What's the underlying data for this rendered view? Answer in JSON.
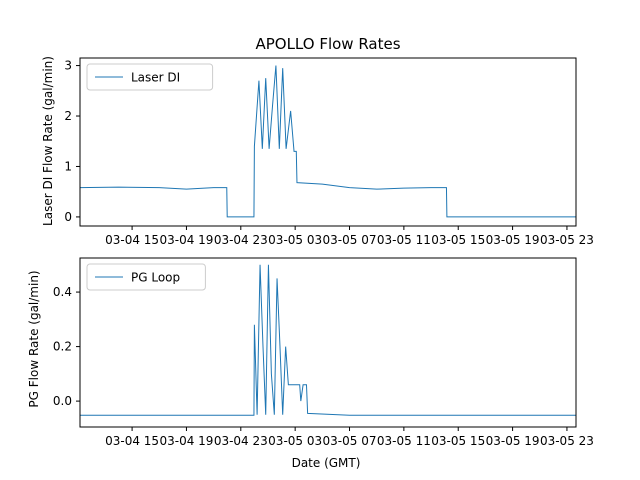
{
  "chart_data": [
    {
      "type": "line",
      "title": "APOLLO Flow Rates",
      "xlabel": "",
      "ylabel": "Laser DI Flow Rate (gal/min)",
      "xlim": [
        "2024-03-04 11:10",
        "2024-03-05 23:40"
      ],
      "ylim": [
        -0.18,
        3.15
      ],
      "xticks": [
        "03-04 15",
        "03-04 19",
        "03-04 23",
        "03-05 03",
        "03-05 07",
        "03-05 11",
        "03-05 15",
        "03-05 19",
        "03-05 23"
      ],
      "yticks": [
        0,
        1,
        2,
        3
      ],
      "legend": "upper-left",
      "grid": false,
      "series": [
        {
          "name": "Laser DI",
          "color": "#1f77b4",
          "points": [
            [
              "2024-03-04 11:10",
              0.58
            ],
            [
              "2024-03-04 14:00",
              0.59
            ],
            [
              "2024-03-04 17:00",
              0.58
            ],
            [
              "2024-03-04 19:00",
              0.55
            ],
            [
              "2024-03-04 21:00",
              0.58
            ],
            [
              "2024-03-04 21:58",
              0.58
            ],
            [
              "2024-03-04 22:00",
              0.0
            ],
            [
              "2024-03-04 23:58",
              0.0
            ],
            [
              "2024-03-05 00:00",
              1.4
            ],
            [
              "2024-03-05 00:20",
              2.7
            ],
            [
              "2024-03-05 00:35",
              1.35
            ],
            [
              "2024-03-05 00:50",
              2.75
            ],
            [
              "2024-03-05 01:05",
              1.35
            ],
            [
              "2024-03-05 01:20",
              2.2
            ],
            [
              "2024-03-05 01:35",
              3.0
            ],
            [
              "2024-03-05 01:50",
              1.35
            ],
            [
              "2024-03-05 02:05",
              2.95
            ],
            [
              "2024-03-05 02:20",
              1.35
            ],
            [
              "2024-03-05 02:40",
              2.1
            ],
            [
              "2024-03-05 02:55",
              1.3
            ],
            [
              "2024-03-05 03:05",
              1.3
            ],
            [
              "2024-03-05 03:08",
              0.68
            ],
            [
              "2024-03-05 05:00",
              0.65
            ],
            [
              "2024-03-05 07:00",
              0.58
            ],
            [
              "2024-03-05 09:00",
              0.55
            ],
            [
              "2024-03-05 11:00",
              0.57
            ],
            [
              "2024-03-05 13:00",
              0.58
            ],
            [
              "2024-03-05 14:08",
              0.58
            ],
            [
              "2024-03-05 14:10",
              0.0
            ],
            [
              "2024-03-05 23:40",
              0.0
            ]
          ]
        }
      ]
    },
    {
      "type": "line",
      "title": "",
      "xlabel": "Date (GMT)",
      "ylabel": "PG Flow Rate (gal/min)",
      "xlim": [
        "2024-03-04 11:10",
        "2024-03-05 23:40"
      ],
      "ylim": [
        -0.095,
        0.525
      ],
      "xticks": [
        "03-04 15",
        "03-04 19",
        "03-04 23",
        "03-05 03",
        "03-05 07",
        "03-05 11",
        "03-05 15",
        "03-05 19",
        "03-05 23"
      ],
      "yticks": [
        0.0,
        0.2,
        0.4
      ],
      "legend": "upper-left",
      "grid": false,
      "series": [
        {
          "name": "PG Loop",
          "color": "#1f77b4",
          "points": [
            [
              "2024-03-04 11:10",
              -0.052
            ],
            [
              "2024-03-04 16:00",
              -0.052
            ],
            [
              "2024-03-04 21:00",
              -0.052
            ],
            [
              "2024-03-04 23:58",
              -0.052
            ],
            [
              "2024-03-05 00:00",
              0.28
            ],
            [
              "2024-03-05 00:12",
              -0.05
            ],
            [
              "2024-03-05 00:25",
              0.5
            ],
            [
              "2024-03-05 00:38",
              0.2
            ],
            [
              "2024-03-05 00:50",
              -0.05
            ],
            [
              "2024-03-05 01:02",
              0.5
            ],
            [
              "2024-03-05 01:15",
              0.1
            ],
            [
              "2024-03-05 01:28",
              -0.05
            ],
            [
              "2024-03-05 01:40",
              0.45
            ],
            [
              "2024-03-05 01:52",
              0.22
            ],
            [
              "2024-03-05 02:05",
              -0.05
            ],
            [
              "2024-03-05 02:18",
              0.2
            ],
            [
              "2024-03-05 02:30",
              0.06
            ],
            [
              "2024-03-05 03:20",
              0.06
            ],
            [
              "2024-03-05 03:25",
              0.0
            ],
            [
              "2024-03-05 03:35",
              0.06
            ],
            [
              "2024-03-05 03:50",
              0.06
            ],
            [
              "2024-03-05 03:55",
              -0.045
            ],
            [
              "2024-03-05 07:00",
              -0.052
            ],
            [
              "2024-03-05 12:00",
              -0.052
            ],
            [
              "2024-03-05 18:00",
              -0.052
            ],
            [
              "2024-03-05 23:40",
              -0.052
            ]
          ]
        }
      ]
    }
  ]
}
